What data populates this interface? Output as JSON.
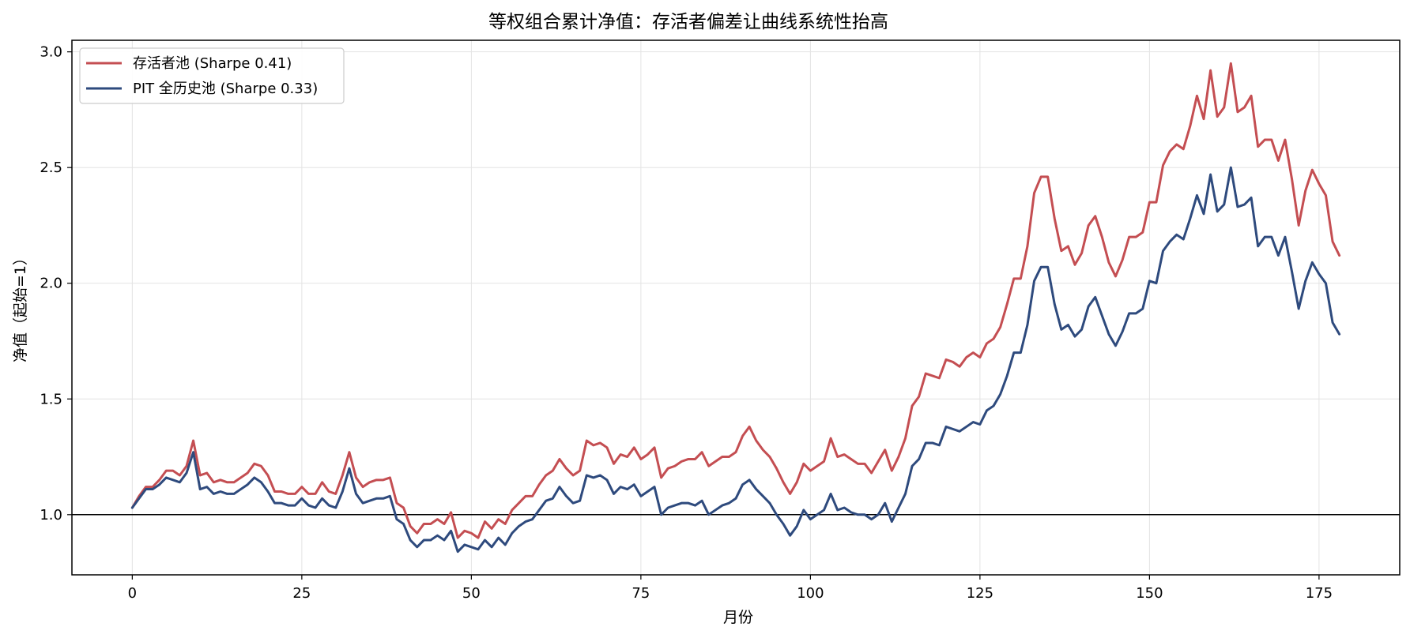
{
  "chart_data": {
    "type": "line",
    "title": "等权组合累计净值：存活者偏差让曲线系统性抬高",
    "xlabel": "月份",
    "ylabel": "净值（起始=1）",
    "xlim": [
      -8.9,
      186.9
    ],
    "ylim": [
      0.74,
      3.05
    ],
    "xticks": [
      0,
      25,
      50,
      75,
      100,
      125,
      150,
      175
    ],
    "yticks": [
      1.0,
      1.5,
      2.0,
      2.5,
      3.0
    ],
    "ytick_labels": [
      "1.0",
      "1.5",
      "2.0",
      "2.5",
      "3.0"
    ],
    "reference_line": 1.0,
    "grid": true,
    "legend_position": "top-left",
    "colors": {
      "survivor": "#c44e52",
      "pit": "#2e4a7d",
      "reference": "#000000",
      "grid": "#e3e3e3"
    },
    "series": [
      {
        "name": "存活者池 (Sharpe 0.41)",
        "color": "#c44e52",
        "values": [
          1.03,
          1.08,
          1.12,
          1.12,
          1.15,
          1.19,
          1.19,
          1.17,
          1.21,
          1.32,
          1.17,
          1.18,
          1.14,
          1.15,
          1.14,
          1.14,
          1.16,
          1.18,
          1.22,
          1.21,
          1.17,
          1.1,
          1.1,
          1.09,
          1.09,
          1.12,
          1.09,
          1.09,
          1.14,
          1.1,
          1.09,
          1.17,
          1.27,
          1.16,
          1.12,
          1.14,
          1.15,
          1.15,
          1.16,
          1.05,
          1.03,
          0.95,
          0.92,
          0.96,
          0.96,
          0.98,
          0.96,
          1.01,
          0.9,
          0.93,
          0.92,
          0.9,
          0.97,
          0.94,
          0.98,
          0.96,
          1.02,
          1.05,
          1.08,
          1.08,
          1.13,
          1.17,
          1.19,
          1.24,
          1.2,
          1.17,
          1.19,
          1.32,
          1.3,
          1.31,
          1.29,
          1.22,
          1.26,
          1.25,
          1.29,
          1.24,
          1.26,
          1.29,
          1.16,
          1.2,
          1.21,
          1.23,
          1.24,
          1.24,
          1.27,
          1.21,
          1.23,
          1.25,
          1.25,
          1.27,
          1.34,
          1.38,
          1.32,
          1.28,
          1.25,
          1.2,
          1.14,
          1.09,
          1.14,
          1.22,
          1.19,
          1.21,
          1.23,
          1.33,
          1.25,
          1.26,
          1.24,
          1.22,
          1.22,
          1.18,
          1.23,
          1.28,
          1.19,
          1.25,
          1.33,
          1.47,
          1.51,
          1.61,
          1.6,
          1.59,
          1.67,
          1.66,
          1.64,
          1.68,
          1.7,
          1.68,
          1.74,
          1.76,
          1.81,
          1.91,
          2.02,
          2.02,
          2.16,
          2.39,
          2.46,
          2.46,
          2.28,
          2.14,
          2.16,
          2.08,
          2.13,
          2.25,
          2.29,
          2.2,
          2.09,
          2.03,
          2.1,
          2.2,
          2.2,
          2.22,
          2.35,
          2.35,
          2.51,
          2.57,
          2.6,
          2.58,
          2.68,
          2.81,
          2.71,
          2.92,
          2.72,
          2.76,
          2.95,
          2.74,
          2.76,
          2.81,
          2.59,
          2.62,
          2.62,
          2.53,
          2.62,
          2.45,
          2.25,
          2.4,
          2.49,
          2.43,
          2.38,
          2.18,
          2.12
        ]
      },
      {
        "name": "PIT 全历史池 (Sharpe 0.33)",
        "color": "#2e4a7d",
        "values": [
          1.03,
          1.07,
          1.11,
          1.11,
          1.13,
          1.16,
          1.15,
          1.14,
          1.18,
          1.27,
          1.11,
          1.12,
          1.09,
          1.1,
          1.09,
          1.09,
          1.11,
          1.13,
          1.16,
          1.14,
          1.1,
          1.05,
          1.05,
          1.04,
          1.04,
          1.07,
          1.04,
          1.03,
          1.07,
          1.04,
          1.03,
          1.1,
          1.2,
          1.09,
          1.05,
          1.06,
          1.07,
          1.07,
          1.08,
          0.98,
          0.96,
          0.89,
          0.86,
          0.89,
          0.89,
          0.91,
          0.89,
          0.93,
          0.84,
          0.87,
          0.86,
          0.85,
          0.89,
          0.86,
          0.9,
          0.87,
          0.92,
          0.95,
          0.97,
          0.98,
          1.02,
          1.06,
          1.07,
          1.12,
          1.08,
          1.05,
          1.06,
          1.17,
          1.16,
          1.17,
          1.15,
          1.09,
          1.12,
          1.11,
          1.13,
          1.08,
          1.1,
          1.12,
          1.0,
          1.03,
          1.04,
          1.05,
          1.05,
          1.04,
          1.06,
          1.0,
          1.02,
          1.04,
          1.05,
          1.07,
          1.13,
          1.15,
          1.11,
          1.08,
          1.05,
          1.0,
          0.96,
          0.91,
          0.95,
          1.02,
          0.98,
          1.0,
          1.02,
          1.09,
          1.02,
          1.03,
          1.01,
          1.0,
          1.0,
          0.98,
          1.0,
          1.05,
          0.97,
          1.03,
          1.09,
          1.21,
          1.24,
          1.31,
          1.31,
          1.3,
          1.38,
          1.37,
          1.36,
          1.38,
          1.4,
          1.39,
          1.45,
          1.47,
          1.52,
          1.6,
          1.7,
          1.7,
          1.82,
          2.01,
          2.07,
          2.07,
          1.91,
          1.8,
          1.82,
          1.77,
          1.8,
          1.9,
          1.94,
          1.86,
          1.78,
          1.73,
          1.79,
          1.87,
          1.87,
          1.89,
          2.01,
          2.0,
          2.14,
          2.18,
          2.21,
          2.19,
          2.28,
          2.38,
          2.3,
          2.47,
          2.31,
          2.34,
          2.5,
          2.33,
          2.34,
          2.37,
          2.16,
          2.2,
          2.2,
          2.12,
          2.2,
          2.05,
          1.89,
          2.01,
          2.09,
          2.04,
          2.0,
          1.83,
          1.78
        ]
      }
    ]
  }
}
